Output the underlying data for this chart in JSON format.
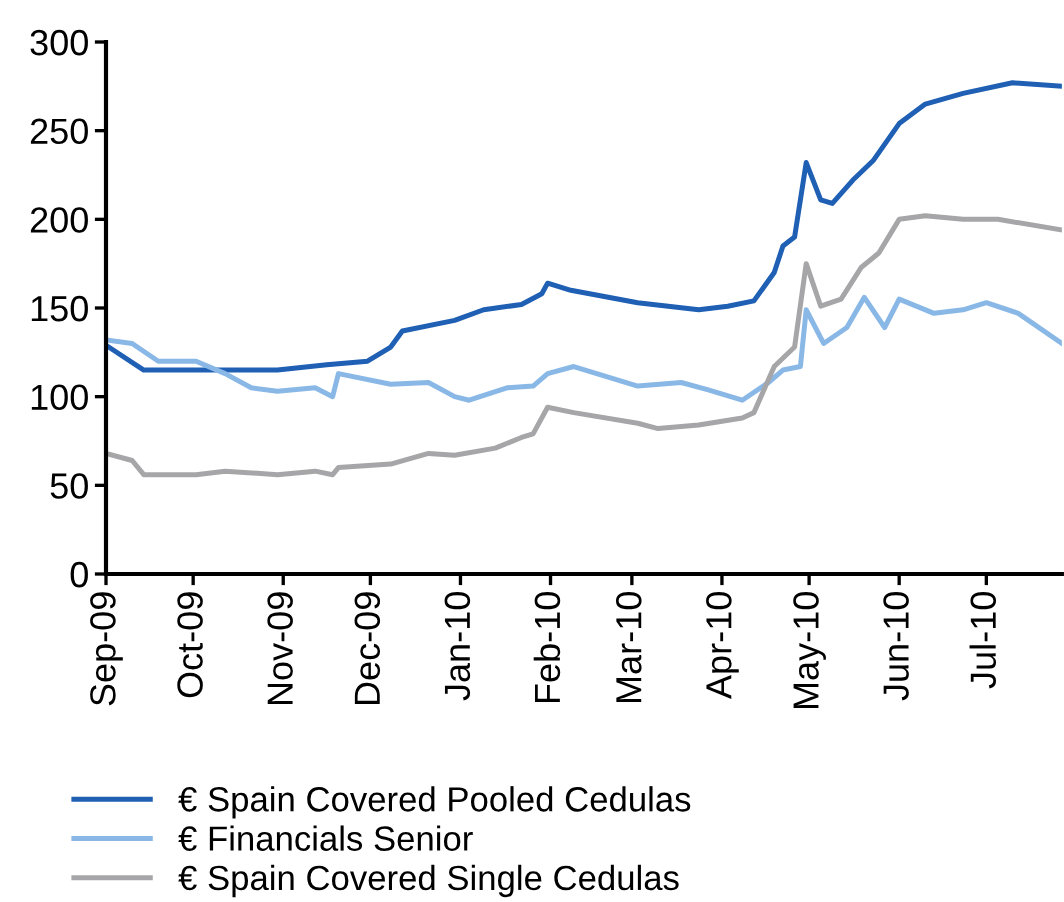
{
  "chart_data": {
    "type": "line",
    "xlim": [
      "2009-09-01",
      "2010-07-27"
    ],
    "xticks": [
      {
        "value": "2009-09-01",
        "label": "Sep-09"
      },
      {
        "value": "2009-10-01",
        "label": "Oct-09"
      },
      {
        "value": "2009-11-01",
        "label": "Nov-09"
      },
      {
        "value": "2009-12-01",
        "label": "Dec-09"
      },
      {
        "value": "2010-01-01",
        "label": "Jan-10"
      },
      {
        "value": "2010-02-01",
        "label": "Feb-10"
      },
      {
        "value": "2010-03-01",
        "label": "Mar-10"
      },
      {
        "value": "2010-04-01",
        "label": "Apr-10"
      },
      {
        "value": "2010-05-01",
        "label": "May-10"
      },
      {
        "value": "2010-06-01",
        "label": "Jun-10"
      },
      {
        "value": "2010-07-01",
        "label": "Jul-10"
      }
    ],
    "ylim": [
      0,
      300
    ],
    "yticks": [
      0,
      50,
      100,
      150,
      200,
      250,
      300
    ],
    "grid": false,
    "legend": "bottom",
    "marker": "none",
    "line_style": "solid",
    "series": [
      {
        "name": "€ Spain Covered Pooled Cedulas",
        "color": "#1f5fb4",
        "x": [
          "2009-09-01",
          "2009-09-14",
          "2009-10-02",
          "2009-10-30",
          "2009-11-16",
          "2009-11-30",
          "2009-12-08",
          "2009-12-12",
          "2009-12-30",
          "2010-01-09",
          "2010-01-22",
          "2010-01-29",
          "2010-01-31",
          "2010-02-08",
          "2010-03-03",
          "2010-03-24",
          "2010-04-03",
          "2010-04-12",
          "2010-04-19",
          "2010-04-22",
          "2010-04-26",
          "2010-04-30",
          "2010-05-05",
          "2010-05-09",
          "2010-05-16",
          "2010-05-23",
          "2010-06-01",
          "2010-06-10",
          "2010-06-23",
          "2010-07-10",
          "2010-07-27"
        ],
        "values": [
          129,
          115,
          115,
          115,
          118,
          120,
          128,
          137,
          143,
          149,
          152,
          158,
          164,
          160,
          153,
          149,
          151,
          154,
          170,
          185,
          190,
          232,
          211,
          209,
          222,
          233,
          254,
          265,
          271,
          277,
          275
        ]
      },
      {
        "name": "€ Financials Senior",
        "color": "#8ab8e6",
        "x": [
          "2009-09-01",
          "2009-09-10",
          "2009-09-19",
          "2009-10-02",
          "2009-10-12",
          "2009-10-21",
          "2009-10-30",
          "2009-11-12",
          "2009-11-18",
          "2009-11-20",
          "2009-12-08",
          "2009-12-21",
          "2009-12-30",
          "2010-01-04",
          "2010-01-17",
          "2010-01-26",
          "2010-01-31",
          "2010-02-09",
          "2010-03-03",
          "2010-03-18",
          "2010-03-27",
          "2010-04-08",
          "2010-04-17",
          "2010-04-22",
          "2010-04-28",
          "2010-04-30",
          "2010-05-06",
          "2010-05-14",
          "2010-05-20",
          "2010-05-27",
          "2010-06-01",
          "2010-06-13",
          "2010-06-23",
          "2010-07-01",
          "2010-07-12",
          "2010-07-27"
        ],
        "values": [
          132,
          130,
          120,
          120,
          113,
          105,
          103,
          105,
          100,
          113,
          107,
          108,
          100,
          98,
          105,
          106,
          113,
          117,
          106,
          108,
          104,
          98,
          108,
          115,
          117,
          149,
          130,
          139,
          156,
          139,
          155,
          147,
          149,
          153,
          147,
          130
        ]
      },
      {
        "name": "€ Spain Covered Single Cedulas",
        "color": "#a6a6a8",
        "x": [
          "2009-09-01",
          "2009-09-10",
          "2009-09-14",
          "2009-10-02",
          "2009-10-12",
          "2009-10-30",
          "2009-11-12",
          "2009-11-18",
          "2009-11-20",
          "2009-12-08",
          "2009-12-21",
          "2009-12-30",
          "2010-01-13",
          "2010-01-22",
          "2010-01-26",
          "2010-01-31",
          "2010-02-09",
          "2010-03-03",
          "2010-03-10",
          "2010-03-24",
          "2010-04-08",
          "2010-04-12",
          "2010-04-19",
          "2010-04-26",
          "2010-04-30",
          "2010-05-05",
          "2010-05-12",
          "2010-05-19",
          "2010-05-25",
          "2010-06-01",
          "2010-06-10",
          "2010-06-23",
          "2010-07-05",
          "2010-07-27"
        ],
        "values": [
          68,
          64,
          56,
          56,
          58,
          56,
          58,
          56,
          60,
          62,
          68,
          67,
          71,
          77,
          79,
          94,
          91,
          85,
          82,
          84,
          88,
          91,
          117,
          128,
          175,
          151,
          155,
          173,
          181,
          200,
          202,
          200,
          200,
          194
        ]
      }
    ]
  }
}
